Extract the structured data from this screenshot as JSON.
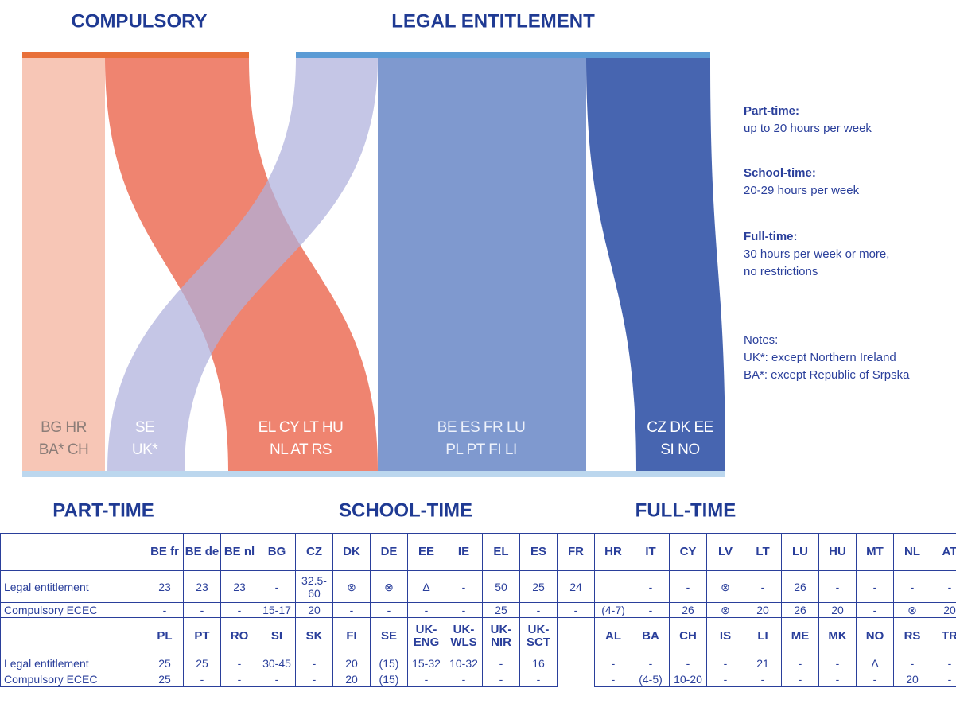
{
  "headings": {
    "top_left": "COMPULSORY",
    "top_right": "LEGAL ENTITLEMENT",
    "bottom_left": "PART-TIME",
    "bottom_center": "SCHOOL-TIME",
    "bottom_right": "FULL-TIME"
  },
  "flows": [
    {
      "lines": [
        "BG HR",
        "BA* CH"
      ]
    },
    {
      "lines": [
        "SE",
        "UK*"
      ]
    },
    {
      "lines": [
        "EL CY LT HU",
        "NL AT RS"
      ]
    },
    {
      "lines": [
        "BE ES FR LU",
        "PL PT FI LI"
      ]
    },
    {
      "lines": [
        "CZ DK EE",
        "SI NO"
      ]
    }
  ],
  "legend": [
    {
      "term": "Part-time:",
      "lines": [
        "up to 20 hours per week"
      ]
    },
    {
      "term": "School-time:",
      "lines": [
        "20-29 hours per week"
      ]
    },
    {
      "term": "Full-time:",
      "lines": [
        "30 hours per week or more,",
        "no restrictions"
      ]
    }
  ],
  "notes": {
    "title": "Notes:",
    "lines": [
      "UK*: except Northern Ireland",
      "BA*: except Republic of Srpska"
    ]
  },
  "table": {
    "blocks": [
      {
        "header": [
          "BE fr",
          "BE de",
          "BE nl",
          "BG",
          "CZ",
          "DK",
          "DE",
          "EE",
          "IE",
          "EL",
          "ES",
          "FR",
          "HR",
          "IT",
          "CY",
          "LV",
          "LT",
          "LU",
          "HU",
          "MT",
          "NL",
          "AT"
        ],
        "rows": [
          {
            "label": "Legal entitlement",
            "cells": [
              "23",
              "23",
              "23",
              "-",
              "32.5-60",
              "⊗",
              "⊗",
              "Δ",
              "-",
              "50",
              "25",
              "24",
              null,
              "-",
              "-",
              "⊗",
              "-",
              "26",
              "-",
              "-",
              "-",
              "-"
            ]
          },
          {
            "label": "Compulsory ECEC",
            "cells": [
              "-",
              "-",
              "-",
              "15-17",
              "20",
              "-",
              "-",
              "-",
              "-",
              "25",
              "-",
              "-",
              "(4-7)",
              "-",
              "26",
              "⊗",
              "20",
              "26",
              "20",
              "-",
              "⊗",
              "20"
            ]
          }
        ]
      },
      {
        "header": [
          "PL",
          "PT",
          "RO",
          "SI",
          "SK",
          "FI",
          "SE",
          "UK-ENG",
          "UK-WLS",
          "UK-NIR",
          "UK-SCT",
          null,
          "AL",
          "BA",
          "CH",
          "IS",
          "LI",
          "ME",
          "MK",
          "NO",
          "RS",
          "TR"
        ],
        "rows": [
          {
            "label": "Legal entitlement",
            "cells": [
              "25",
              "25",
              "-",
              "30-45",
              "-",
              "20",
              "(15)",
              "15-32",
              "10-32",
              "-",
              "16",
              null,
              "-",
              "-",
              "-",
              "-",
              "21",
              "-",
              "-",
              "Δ",
              "-",
              "-"
            ]
          },
          {
            "label": "Compulsory ECEC",
            "cells": [
              "25",
              "-",
              "-",
              "-",
              "-",
              "20",
              "(15)",
              "-",
              "-",
              "-",
              "-",
              null,
              "-",
              "(4-5)",
              "10-20",
              "-",
              "-",
              "-",
              "-",
              "-",
              "20",
              "-"
            ]
          }
        ]
      }
    ]
  }
}
